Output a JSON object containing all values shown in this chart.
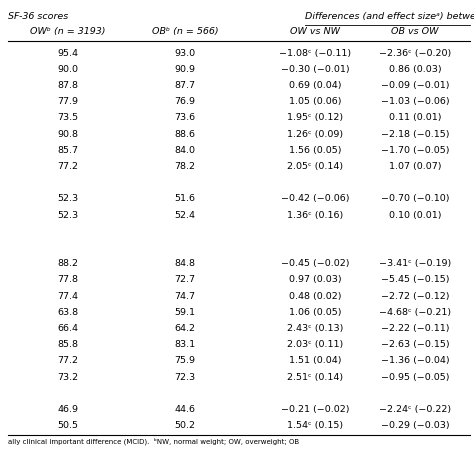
{
  "header_row1_left": "SF-36 scores",
  "header_row1_right": "Differences (and effect sizeᵃ) between",
  "col_headers": [
    "OWᵇ (n = 3193)",
    "OBᵇ (n = 566)",
    "OW vs NW",
    "OB vs OW"
  ],
  "rows": [
    [
      "95.4",
      "93.0",
      "−1.08ᶜ (−0.11)",
      "−2.36ᶜ (−0.20)"
    ],
    [
      "90.0",
      "90.9",
      "−0.30 (−0.01)",
      "0.86 (0.03)"
    ],
    [
      "87.8",
      "87.7",
      "0.69 (0.04)",
      "−0.09 (−0.01)"
    ],
    [
      "77.9",
      "76.9",
      "1.05 (0.06)",
      "−1.03 (−0.06)"
    ],
    [
      "73.5",
      "73.6",
      "1.95ᶜ (0.12)",
      "0.11 (0.01)"
    ],
    [
      "90.8",
      "88.6",
      "1.26ᶜ (0.09)",
      "−2.18 (−0.15)"
    ],
    [
      "85.7",
      "84.0",
      "1.56 (0.05)",
      "−1.70 (−0.05)"
    ],
    [
      "77.2",
      "78.2",
      "2.05ᶜ (0.14)",
      "1.07 (0.07)"
    ],
    [
      "",
      "",
      "",
      ""
    ],
    [
      "52.3",
      "51.6",
      "−0.42 (−0.06)",
      "−0.70 (−0.10)"
    ],
    [
      "52.3",
      "52.4",
      "1.36ᶜ (0.16)",
      "0.10 (0.01)"
    ],
    [
      "",
      "",
      "",
      ""
    ],
    [
      "",
      "",
      "",
      ""
    ],
    [
      "88.2",
      "84.8",
      "−0.45 (−0.02)",
      "−3.41ᶜ (−0.19)"
    ],
    [
      "77.8",
      "72.7",
      "0.97 (0.03)",
      "−5.45 (−0.15)"
    ],
    [
      "77.4",
      "74.7",
      "0.48 (0.02)",
      "−2.72 (−0.12)"
    ],
    [
      "63.8",
      "59.1",
      "1.06 (0.05)",
      "−4.68ᶜ (−0.21)"
    ],
    [
      "66.4",
      "64.2",
      "2.43ᶜ (0.13)",
      "−2.22 (−0.11)"
    ],
    [
      "85.8",
      "83.1",
      "2.03ᶜ (0.11)",
      "−2.63 (−0.15)"
    ],
    [
      "77.2",
      "75.9",
      "1.51 (0.04)",
      "−1.36 (−0.04)"
    ],
    [
      "73.2",
      "72.3",
      "2.51ᶜ (0.14)",
      "−0.95 (−0.05)"
    ],
    [
      "",
      "",
      "",
      ""
    ],
    [
      "46.9",
      "44.6",
      "−0.21 (−0.02)",
      "−2.24ᶜ (−0.22)"
    ],
    [
      "50.5",
      "50.2",
      "1.54ᶜ (0.15)",
      "−0.29 (−0.03)"
    ]
  ],
  "footnote": "ally clinical important difference (MCID).  ᵇNW, normal weight; OW, overweight; OB",
  "bg_color": "#ffffff",
  "text_color": "#000000",
  "font_size": 6.8
}
